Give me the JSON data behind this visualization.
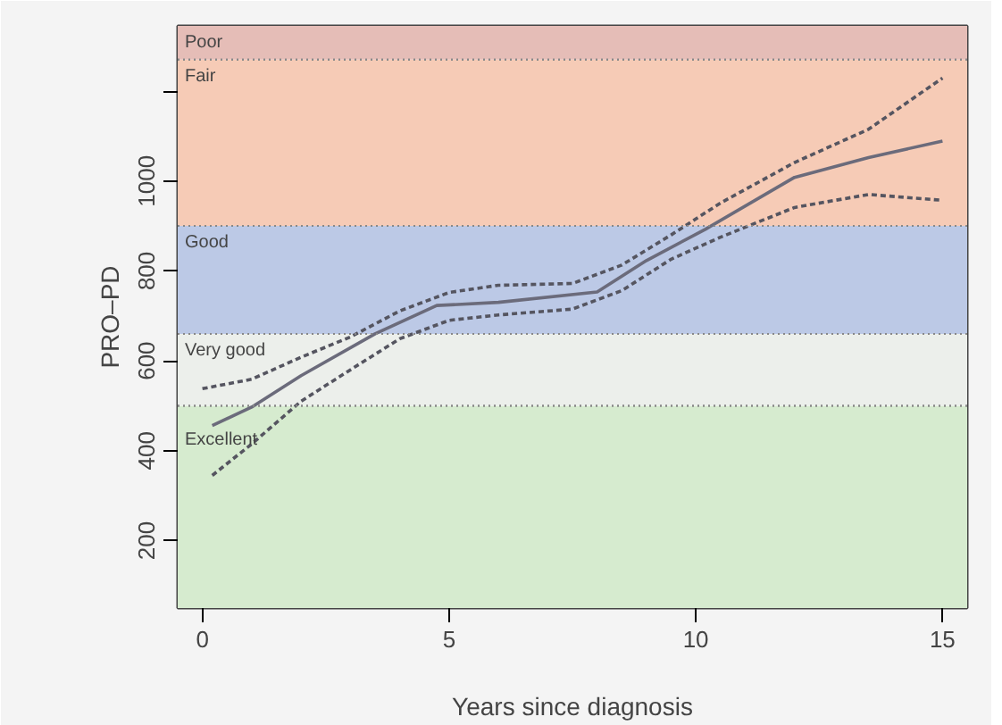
{
  "chart_data": {
    "type": "line",
    "xlabel": "Years since diagnosis",
    "ylabel": "PRO–PD",
    "xlim": [
      -0.5,
      15.5
    ],
    "ylim": [
      50,
      1345
    ],
    "xticks": [
      0,
      5,
      10,
      15
    ],
    "yticks": [
      200,
      400,
      600,
      800,
      1000,
      {
        "value": 1200,
        "label": null
      }
    ],
    "grid": false,
    "series": [
      {
        "color": "#6b6b7b",
        "line_style": "solid",
        "x": [
          0.2,
          1,
          2,
          3.5,
          4.75,
          6,
          8,
          9,
          10.2,
          12,
          13.5,
          15
        ],
        "values": [
          456,
          497,
          567,
          660,
          723,
          730,
          753,
          823,
          893,
          1008,
          1052,
          1089
        ]
      },
      {
        "color": "#555560",
        "line_style": "dashed",
        "x": [
          0,
          1,
          2,
          3,
          4,
          5,
          6,
          7.5,
          8.5,
          9.5,
          10.5,
          12,
          13.5,
          15
        ],
        "values": [
          538,
          559,
          608,
          653,
          711,
          752,
          768,
          772,
          813,
          880,
          951,
          1041,
          1115,
          1229
        ]
      },
      {
        "color": "#555560",
        "line_style": "dashed",
        "x": [
          0.2,
          1,
          2,
          3,
          4,
          5,
          6,
          7.5,
          8.5,
          9.5,
          10.5,
          12,
          13.5,
          15
        ],
        "values": [
          345,
          415,
          510,
          580,
          649,
          690,
          702,
          715,
          756,
          826,
          875,
          941,
          970,
          957
        ]
      }
    ],
    "bands": [
      {
        "axis": "y",
        "from": 50,
        "to": 500,
        "label": "Excellent",
        "color": "#d6ebcf"
      },
      {
        "axis": "y",
        "from": 500,
        "to": 660,
        "label": "Very good",
        "color": "#ecefeb"
      },
      {
        "axis": "y",
        "from": 660,
        "to": 900,
        "label": "Good",
        "color": "#bcc9e6"
      },
      {
        "axis": "y",
        "from": 900,
        "to": 1270,
        "label": "Fair",
        "color": "#f6cbb6"
      },
      {
        "axis": "y",
        "from": 1270,
        "to": 1345,
        "label": "Poor",
        "color": "#e5bdb7"
      }
    ]
  }
}
